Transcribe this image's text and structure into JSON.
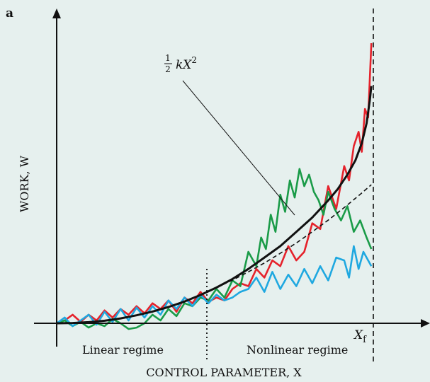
{
  "chart_data": {
    "type": "line",
    "panel_label": "a",
    "ylabel": "WORK, W",
    "xlabel": "CONTROL PARAMETER, X",
    "xlim": [
      0,
      1
    ],
    "ylim": [
      0,
      1
    ],
    "xf_label": "X",
    "xf_subscript": "f",
    "xf_position": 0.985,
    "regime_divider": 0.475,
    "regimes": [
      "Linear regime",
      "Nonlinear regime"
    ],
    "annotation": {
      "frac_num": "1",
      "frac_den": "2",
      "expr": "kX",
      "exponent": "2"
    },
    "series": [
      {
        "color": "#e5222b",
        "x": [
          0.0,
          0.025,
          0.05,
          0.075,
          0.1,
          0.125,
          0.15,
          0.175,
          0.2,
          0.225,
          0.25,
          0.275,
          0.3,
          0.325,
          0.35,
          0.375,
          0.4,
          0.425,
          0.45,
          0.475,
          0.5,
          0.525,
          0.55,
          0.575,
          0.6,
          0.625,
          0.65,
          0.675,
          0.7,
          0.725,
          0.75,
          0.775,
          0.8,
          0.825,
          0.85,
          0.875,
          0.9,
          0.915,
          0.93,
          0.945,
          0.955,
          0.965,
          0.975,
          0.985
        ],
        "values": [
          0.0,
          0.01,
          0.03,
          0.005,
          0.03,
          0.01,
          0.045,
          0.02,
          0.05,
          0.03,
          0.06,
          0.035,
          0.07,
          0.05,
          0.08,
          0.04,
          0.09,
          0.07,
          0.11,
          0.075,
          0.09,
          0.08,
          0.12,
          0.14,
          0.13,
          0.19,
          0.16,
          0.22,
          0.2,
          0.27,
          0.22,
          0.25,
          0.35,
          0.33,
          0.48,
          0.4,
          0.55,
          0.5,
          0.62,
          0.67,
          0.6,
          0.75,
          0.72,
          0.98
        ]
      },
      {
        "color": "#1a9b48",
        "x": [
          0.0,
          0.025,
          0.05,
          0.075,
          0.1,
          0.125,
          0.15,
          0.175,
          0.2,
          0.225,
          0.25,
          0.275,
          0.3,
          0.325,
          0.35,
          0.375,
          0.4,
          0.425,
          0.45,
          0.475,
          0.5,
          0.525,
          0.55,
          0.575,
          0.6,
          0.625,
          0.64,
          0.655,
          0.67,
          0.685,
          0.7,
          0.715,
          0.73,
          0.745,
          0.76,
          0.775,
          0.79,
          0.805,
          0.82,
          0.835,
          0.85,
          0.87,
          0.89,
          0.91,
          0.93,
          0.95,
          0.97,
          0.985
        ],
        "values": [
          0.0,
          0.01,
          -0.01,
          0.005,
          -0.015,
          0.0,
          -0.01,
          0.015,
          0.0,
          -0.02,
          -0.015,
          0.0,
          0.03,
          0.01,
          0.05,
          0.025,
          0.07,
          0.06,
          0.09,
          0.08,
          0.12,
          0.09,
          0.15,
          0.13,
          0.25,
          0.2,
          0.3,
          0.26,
          0.38,
          0.32,
          0.45,
          0.39,
          0.5,
          0.44,
          0.54,
          0.48,
          0.52,
          0.46,
          0.43,
          0.38,
          0.46,
          0.4,
          0.36,
          0.41,
          0.32,
          0.36,
          0.3,
          0.26
        ]
      },
      {
        "color": "#1fa8e0",
        "x": [
          0.0,
          0.025,
          0.05,
          0.075,
          0.1,
          0.125,
          0.15,
          0.175,
          0.2,
          0.225,
          0.25,
          0.275,
          0.3,
          0.325,
          0.35,
          0.375,
          0.4,
          0.425,
          0.45,
          0.475,
          0.5,
          0.525,
          0.55,
          0.575,
          0.6,
          0.625,
          0.65,
          0.675,
          0.7,
          0.725,
          0.75,
          0.775,
          0.8,
          0.825,
          0.85,
          0.875,
          0.9,
          0.915,
          0.93,
          0.945,
          0.96,
          0.985
        ],
        "values": [
          0.0,
          0.02,
          -0.01,
          0.01,
          0.03,
          -0.005,
          0.04,
          0.005,
          0.05,
          0.01,
          0.055,
          0.02,
          0.06,
          0.03,
          0.08,
          0.05,
          0.09,
          0.06,
          0.1,
          0.07,
          0.1,
          0.08,
          0.09,
          0.11,
          0.12,
          0.16,
          0.11,
          0.18,
          0.12,
          0.17,
          0.13,
          0.19,
          0.14,
          0.2,
          0.15,
          0.23,
          0.22,
          0.16,
          0.27,
          0.19,
          0.25,
          0.2
        ]
      },
      {
        "color": "#111111",
        "x": [
          0.0,
          0.05,
          0.1,
          0.15,
          0.2,
          0.25,
          0.3,
          0.35,
          0.4,
          0.45,
          0.5,
          0.55,
          0.6,
          0.65,
          0.7,
          0.75,
          0.8,
          0.85,
          0.88,
          0.91,
          0.935,
          0.955,
          0.97,
          0.98,
          0.985
        ],
        "values": [
          0.0,
          0.001,
          0.004,
          0.009,
          0.017,
          0.028,
          0.041,
          0.057,
          0.076,
          0.099,
          0.125,
          0.155,
          0.19,
          0.23,
          0.27,
          0.32,
          0.37,
          0.43,
          0.47,
          0.52,
          0.57,
          0.63,
          0.7,
          0.78,
          0.83
        ]
      },
      {
        "color": "#111111",
        "dashed": true,
        "x": [
          0.5,
          0.55,
          0.6,
          0.65,
          0.7,
          0.75,
          0.8,
          0.85,
          0.9,
          0.95,
          0.985
        ],
        "values": [
          0.125,
          0.151,
          0.18,
          0.211,
          0.245,
          0.281,
          0.32,
          0.361,
          0.405,
          0.451,
          0.485
        ]
      }
    ]
  }
}
